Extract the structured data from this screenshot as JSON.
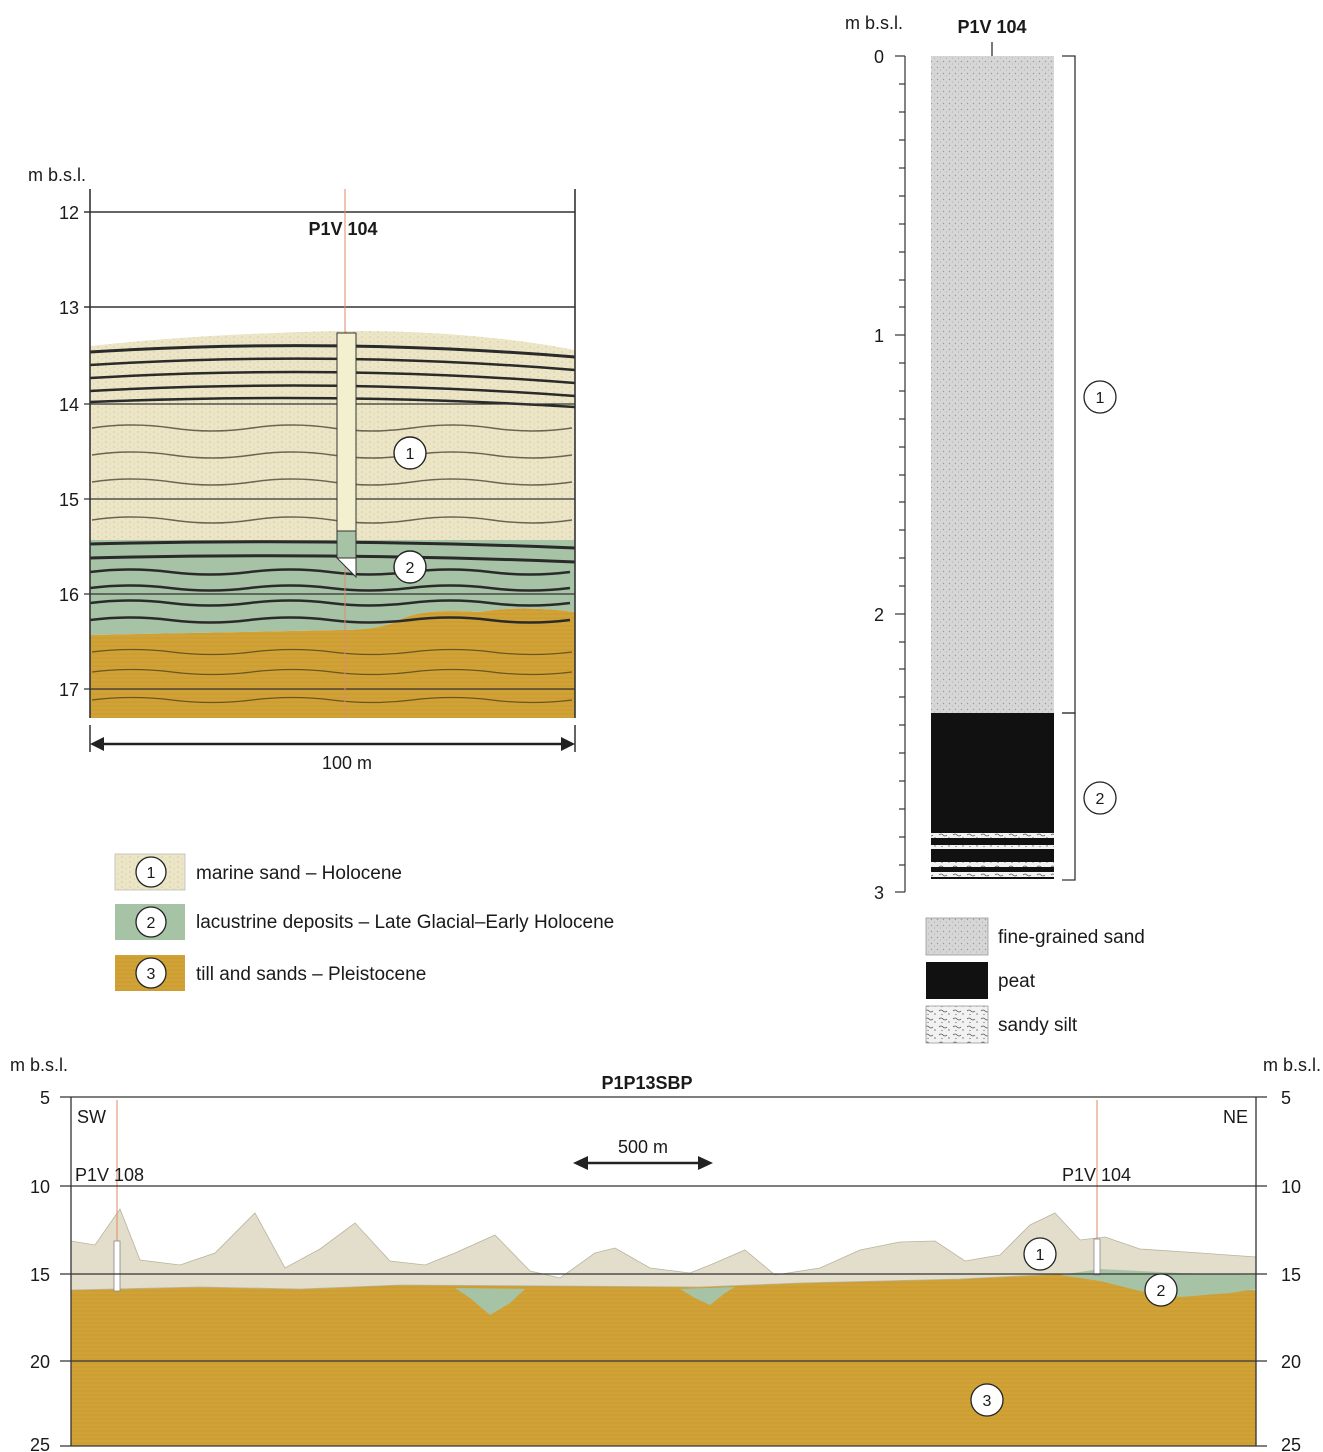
{
  "profile_top": {
    "y_axis_title": "m b.s.l.",
    "title": "P1V 104",
    "ticks": [
      "12",
      "13",
      "14",
      "15",
      "16",
      "17"
    ],
    "scale_label": "100 m",
    "unit_markers": [
      "1",
      "2"
    ]
  },
  "core": {
    "y_axis_title": "m b.s.l.",
    "title": "P1V 104",
    "ticks": [
      "0",
      "1",
      "2",
      "3"
    ],
    "unit_markers": [
      "1",
      "2"
    ],
    "legend": [
      {
        "label": "fine-grained sand",
        "pattern": "fine-sand"
      },
      {
        "label": "peat",
        "pattern": "peat"
      },
      {
        "label": "sandy silt",
        "pattern": "sandy-silt"
      }
    ]
  },
  "units_legend": [
    {
      "number": "1",
      "label": "marine sand – Holocene",
      "color": "#ece6c6"
    },
    {
      "number": "2",
      "label": "lacustrine deposits – Late Glacial–Early Holocene",
      "color": "#a7c3a6"
    },
    {
      "number": "3",
      "label": "till and sands – Pleistocene",
      "color": "#d1a236"
    }
  ],
  "profile_bottom": {
    "title": "P1P13SBP",
    "y_axis_title_left": "m b.s.l.",
    "y_axis_title_right": "m b.s.l.",
    "ticks": [
      "5",
      "10",
      "15",
      "20",
      "25"
    ],
    "direction_left": "SW",
    "direction_right": "NE",
    "core_left": "P1V 108",
    "core_right": "P1V 104",
    "scale_label": "500 m",
    "unit_markers": [
      "1",
      "2",
      "3"
    ]
  },
  "colors": {
    "marine_sand": "#ece6c6",
    "lacustrine": "#a7c3a6",
    "till": "#d1a236",
    "reflector": "#2a2a2a",
    "core_line": "#e08a6a"
  }
}
